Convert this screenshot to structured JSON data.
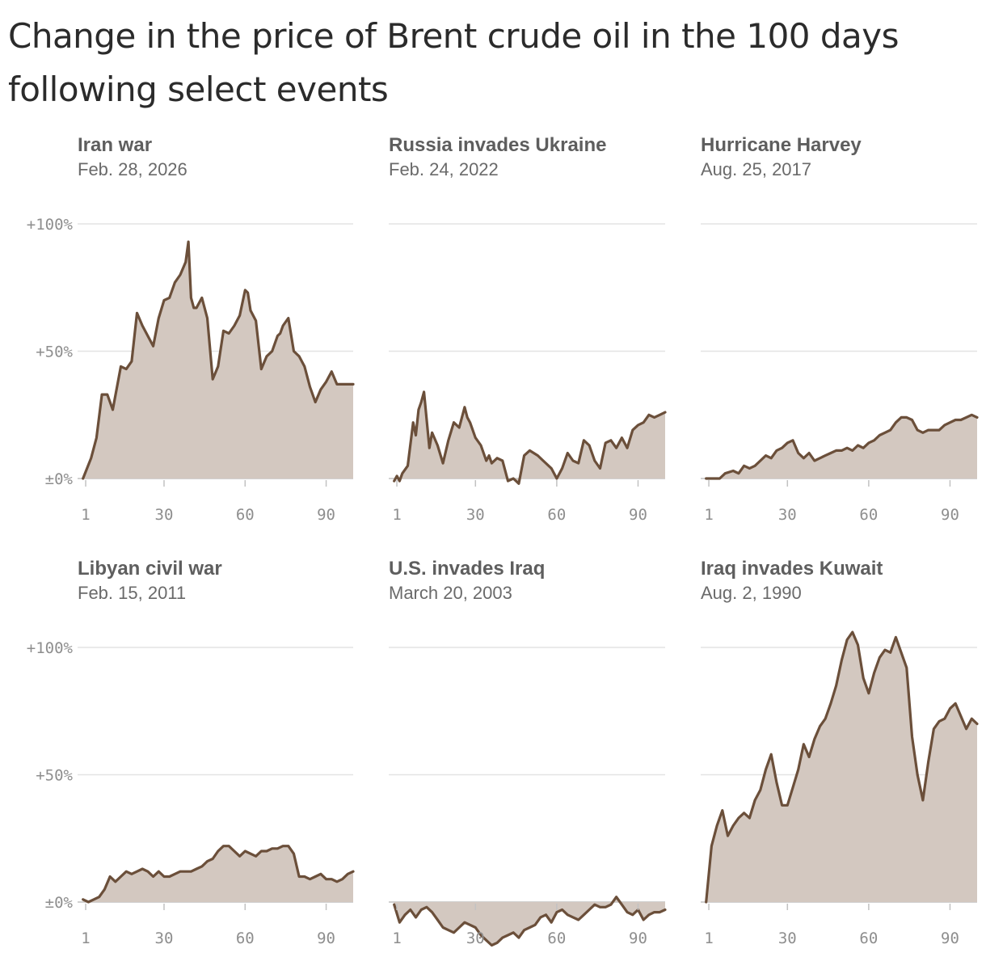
{
  "title": "Change in the price of Brent crude oil in the 100 days following select events",
  "colors": {
    "line": "#6b4f3a",
    "area": "#d3c8c0",
    "grid": "#e3e3e3",
    "baseline": "#c2c2c2"
  },
  "chart_data": [
    {
      "type": "area",
      "title": "Iran war",
      "subtitle": "Feb. 28, 2026",
      "x": [
        0,
        3,
        5,
        7,
        9,
        11,
        14,
        16,
        18,
        20,
        22,
        24,
        26,
        28,
        30,
        32,
        34,
        36,
        38,
        39,
        40,
        41,
        42,
        44,
        46,
        48,
        50,
        52,
        54,
        56,
        58,
        60,
        61,
        62,
        64,
        66,
        68,
        70,
        72,
        73,
        74,
        76,
        78,
        80,
        82,
        84,
        86,
        88,
        90,
        92,
        94,
        96,
        98,
        100
      ],
      "y": [
        0,
        8,
        16,
        33,
        33,
        27,
        44,
        43,
        46,
        65,
        60,
        56,
        52,
        63,
        70,
        71,
        77,
        80,
        85,
        93,
        71,
        67,
        67,
        71,
        63,
        39,
        44,
        58,
        57,
        60,
        64,
        74,
        73,
        66,
        62,
        43,
        48,
        50,
        56,
        57,
        60,
        63,
        50,
        48,
        44,
        36,
        30,
        35,
        38,
        42,
        37,
        37,
        37,
        37
      ],
      "xticks": [
        1,
        30,
        60,
        90
      ],
      "yticks": [
        0,
        50,
        100
      ],
      "ytick_labels": [
        "±0%",
        "+50%",
        "+100%"
      ],
      "ylim": [
        0,
        100
      ],
      "xlim": [
        -2,
        100
      ]
    },
    {
      "type": "area",
      "title": "Russia invades Ukraine",
      "subtitle": "Feb. 24, 2022",
      "x": [
        0,
        1,
        2,
        3,
        5,
        7,
        8,
        9,
        10,
        11,
        13,
        14,
        16,
        18,
        20,
        22,
        24,
        26,
        27,
        28,
        30,
        32,
        34,
        35,
        36,
        38,
        40,
        42,
        44,
        46,
        48,
        50,
        53,
        55,
        58,
        60,
        62,
        64,
        66,
        68,
        70,
        72,
        74,
        76,
        78,
        80,
        82,
        84,
        86,
        88,
        90,
        92,
        94,
        96,
        98,
        100
      ],
      "y": [
        -1,
        1,
        -1,
        2,
        5,
        22,
        17,
        27,
        30,
        34,
        12,
        18,
        13,
        6,
        15,
        22,
        20,
        28,
        24,
        22,
        16,
        13,
        7,
        9,
        6,
        8,
        7,
        -1,
        0,
        -2,
        9,
        11,
        9,
        7,
        4,
        0,
        4,
        10,
        7,
        6,
        15,
        13,
        7,
        4,
        14,
        15,
        12,
        16,
        12,
        19,
        21,
        22,
        25,
        24,
        25,
        26
      ],
      "xticks": [
        1,
        30,
        60,
        90
      ],
      "yticks": [
        0,
        50,
        100
      ],
      "ytick_labels": [
        "",
        "",
        ""
      ],
      "ylim": [
        0,
        100
      ],
      "xlim": [
        -2,
        100
      ]
    },
    {
      "type": "area",
      "title": "Hurricane Harvey",
      "subtitle": "Aug. 25, 2017",
      "x": [
        0,
        3,
        5,
        7,
        10,
        12,
        14,
        16,
        18,
        20,
        22,
        24,
        26,
        28,
        30,
        32,
        34,
        36,
        38,
        40,
        42,
        44,
        46,
        48,
        50,
        52,
        54,
        56,
        58,
        60,
        62,
        64,
        66,
        68,
        70,
        72,
        74,
        76,
        78,
        80,
        82,
        84,
        86,
        88,
        90,
        92,
        94,
        96,
        98,
        100
      ],
      "y": [
        0,
        0,
        0,
        2,
        3,
        2,
        5,
        4,
        5,
        7,
        9,
        8,
        11,
        12,
        14,
        15,
        10,
        8,
        10,
        7,
        8,
        9,
        10,
        11,
        11,
        12,
        11,
        13,
        12,
        14,
        15,
        17,
        18,
        19,
        22,
        24,
        24,
        23,
        19,
        18,
        19,
        19,
        19,
        21,
        22,
        23,
        23,
        24,
        25,
        24
      ],
      "xticks": [
        1,
        30,
        60,
        90
      ],
      "yticks": [
        0,
        50,
        100
      ],
      "ytick_labels": [
        "",
        "",
        ""
      ],
      "ylim": [
        0,
        100
      ],
      "xlim": [
        -2,
        100
      ]
    },
    {
      "type": "area",
      "title": "Libyan civil war",
      "subtitle": "Feb. 15, 2011",
      "x": [
        0,
        2,
        4,
        6,
        8,
        10,
        12,
        14,
        16,
        18,
        20,
        22,
        24,
        26,
        28,
        30,
        32,
        34,
        36,
        38,
        40,
        42,
        44,
        46,
        48,
        50,
        52,
        54,
        56,
        58,
        60,
        62,
        64,
        66,
        68,
        70,
        72,
        74,
        76,
        78,
        80,
        82,
        84,
        86,
        88,
        90,
        92,
        94,
        96,
        98,
        100
      ],
      "y": [
        1,
        0,
        1,
        2,
        5,
        10,
        8,
        10,
        12,
        11,
        12,
        13,
        12,
        10,
        12,
        10,
        10,
        11,
        12,
        12,
        12,
        13,
        14,
        16,
        17,
        20,
        22,
        22,
        20,
        18,
        20,
        19,
        18,
        20,
        20,
        21,
        21,
        22,
        22,
        19,
        10,
        10,
        9,
        10,
        11,
        9,
        9,
        8,
        9,
        11,
        12
      ],
      "xticks": [
        1,
        30,
        60,
        90
      ],
      "yticks": [
        0,
        50,
        100
      ],
      "ytick_labels": [
        "±0%",
        "+50%",
        "+100%"
      ],
      "ylim": [
        0,
        100
      ],
      "xlim": [
        -2,
        100
      ]
    },
    {
      "type": "area",
      "title": "U.S. invades Iraq",
      "subtitle": "March 20, 2003",
      "x": [
        0,
        2,
        4,
        6,
        8,
        10,
        12,
        14,
        16,
        18,
        20,
        22,
        24,
        26,
        28,
        30,
        32,
        34,
        36,
        38,
        40,
        42,
        44,
        46,
        48,
        50,
        52,
        54,
        56,
        58,
        60,
        62,
        64,
        66,
        68,
        70,
        72,
        74,
        76,
        78,
        80,
        82,
        84,
        86,
        88,
        90,
        92,
        94,
        96,
        98,
        100
      ],
      "y": [
        -1,
        -8,
        -5,
        -3,
        -6,
        -3,
        -2,
        -4,
        -7,
        -10,
        -11,
        -12,
        -10,
        -8,
        -9,
        -10,
        -13,
        -15,
        -17,
        -16,
        -14,
        -13,
        -12,
        -14,
        -11,
        -10,
        -9,
        -6,
        -5,
        -8,
        -4,
        -3,
        -5,
        -6,
        -7,
        -5,
        -3,
        -1,
        -2,
        -2,
        -1,
        2,
        -1,
        -4,
        -5,
        -3,
        -7,
        -5,
        -4,
        -4,
        -3
      ],
      "xticks": [
        1,
        30,
        60,
        90
      ],
      "yticks": [
        0,
        50,
        100
      ],
      "ytick_labels": [
        "",
        "",
        ""
      ],
      "ylim": [
        0,
        100
      ],
      "xlim": [
        -2,
        100
      ]
    },
    {
      "type": "area",
      "title": "Iraq invades Kuwait",
      "subtitle": "Aug. 2, 1990",
      "x": [
        0,
        2,
        4,
        6,
        8,
        10,
        12,
        14,
        16,
        18,
        20,
        22,
        24,
        26,
        28,
        30,
        32,
        34,
        36,
        38,
        40,
        42,
        44,
        46,
        48,
        50,
        52,
        54,
        56,
        58,
        60,
        62,
        64,
        66,
        68,
        70,
        72,
        74,
        76,
        78,
        80,
        82,
        84,
        86,
        88,
        90,
        92,
        94,
        96,
        98,
        100
      ],
      "y": [
        0,
        22,
        30,
        36,
        26,
        30,
        33,
        35,
        33,
        40,
        44,
        52,
        58,
        47,
        38,
        38,
        45,
        52,
        62,
        57,
        64,
        69,
        72,
        78,
        85,
        95,
        103,
        106,
        101,
        88,
        82,
        90,
        96,
        99,
        98,
        104,
        98,
        92,
        65,
        50,
        40,
        55,
        68,
        71,
        72,
        76,
        78,
        73,
        68,
        72,
        70
      ],
      "xticks": [
        1,
        30,
        60,
        90
      ],
      "yticks": [
        0,
        50,
        100
      ],
      "ytick_labels": [
        "",
        "",
        ""
      ],
      "ylim": [
        0,
        100
      ],
      "xlim": [
        -2,
        100
      ]
    }
  ]
}
